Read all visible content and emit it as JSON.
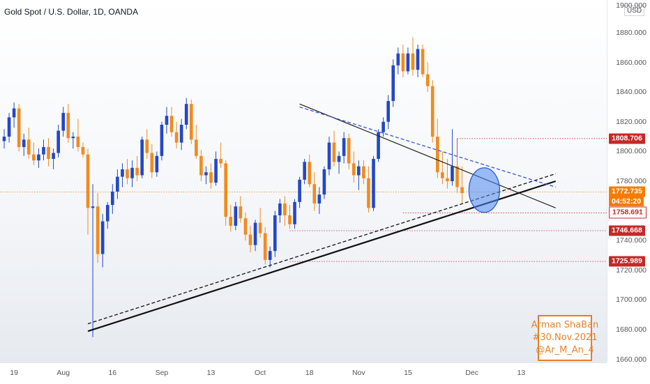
{
  "header": {
    "title": "Gold Spot / U.S. Dollar, 1D, OANDA"
  },
  "axis": {
    "currency": "USD",
    "top_label": "1900.000"
  },
  "signature": {
    "line1": "Arman ShaBan",
    "line2": "#30.Nov.2021",
    "line3": "@Ar_M_An_4"
  },
  "countdown": "04:52:20",
  "colors": {
    "bull": "#2347c8",
    "bear": "#f28a1f",
    "tag_red": "#c62828",
    "tag_orange": "#f57c00",
    "circle": "#4a86f0",
    "signature": "#e67e22"
  },
  "chart_data": {
    "type": "candlestick",
    "title": "Gold Spot / U.S. Dollar, 1D, OANDA",
    "ylim": [
      1658,
      1902
    ],
    "y_ticks": [
      1660,
      1680,
      1700,
      1720,
      1740,
      1760,
      1780,
      1800,
      1820,
      1840,
      1860,
      1880
    ],
    "y_tick_labels": [
      "1660.000",
      "1680.000",
      "1700.000",
      "1720.000",
      "1740.000",
      "1760.000",
      "1780.000",
      "1800.000",
      "1820.000",
      "1840.000",
      "1860.000",
      "1880.000"
    ],
    "x_tick_labels": [
      "19",
      "Aug",
      "16",
      "Sep",
      "13",
      "Oct",
      "18",
      "Nov",
      "15",
      "Dec",
      "13"
    ],
    "x_tick_index": [
      2,
      12,
      22,
      32,
      42,
      52,
      62,
      72,
      82,
      95,
      105
    ],
    "grid": false,
    "price_tags": [
      {
        "value": 1808.706,
        "label": "1808.706",
        "style": "red"
      },
      {
        "value": 1772.735,
        "label": "1772.735",
        "style": "current"
      },
      {
        "value": 1758.691,
        "label": "1758.691",
        "style": "white"
      },
      {
        "value": 1746.668,
        "label": "1746.668",
        "style": "red"
      },
      {
        "value": 1725.989,
        "label": "1725.989",
        "style": "red"
      }
    ],
    "candles": [
      [
        1807,
        1815,
        1802,
        1810
      ],
      [
        1810,
        1826,
        1806,
        1823
      ],
      [
        1823,
        1833,
        1816,
        1829
      ],
      [
        1829,
        1832,
        1800,
        1803
      ],
      [
        1803,
        1812,
        1797,
        1808
      ],
      [
        1808,
        1816,
        1795,
        1798
      ],
      [
        1798,
        1806,
        1791,
        1794
      ],
      [
        1794,
        1802,
        1789,
        1798
      ],
      [
        1798,
        1808,
        1794,
        1803
      ],
      [
        1803,
        1809,
        1790,
        1795
      ],
      [
        1795,
        1802,
        1788,
        1799
      ],
      [
        1799,
        1818,
        1796,
        1814
      ],
      [
        1814,
        1830,
        1810,
        1826
      ],
      [
        1826,
        1832,
        1806,
        1809
      ],
      [
        1809,
        1813,
        1802,
        1810
      ],
      [
        1810,
        1822,
        1800,
        1803
      ],
      [
        1803,
        1806,
        1796,
        1798
      ],
      [
        1798,
        1802,
        1744,
        1762
      ],
      [
        1762,
        1778,
        1675,
        1763
      ],
      [
        1763,
        1772,
        1725,
        1731
      ],
      [
        1731,
        1758,
        1722,
        1753
      ],
      [
        1753,
        1766,
        1748,
        1764
      ],
      [
        1764,
        1778,
        1758,
        1773
      ],
      [
        1773,
        1788,
        1768,
        1783
      ],
      [
        1783,
        1792,
        1776,
        1788
      ],
      [
        1788,
        1795,
        1778,
        1782
      ],
      [
        1782,
        1794,
        1776,
        1789
      ],
      [
        1789,
        1797,
        1780,
        1784
      ],
      [
        1784,
        1810,
        1782,
        1808
      ],
      [
        1808,
        1815,
        1795,
        1799
      ],
      [
        1799,
        1805,
        1782,
        1786
      ],
      [
        1786,
        1800,
        1783,
        1797
      ],
      [
        1797,
        1820,
        1794,
        1818
      ],
      [
        1818,
        1830,
        1812,
        1824
      ],
      [
        1824,
        1830,
        1810,
        1813
      ],
      [
        1813,
        1820,
        1802,
        1806
      ],
      [
        1806,
        1822,
        1801,
        1818
      ],
      [
        1818,
        1836,
        1815,
        1832
      ],
      [
        1832,
        1835,
        1805,
        1808
      ],
      [
        1808,
        1818,
        1795,
        1797
      ],
      [
        1797,
        1801,
        1780,
        1784
      ],
      [
        1784,
        1790,
        1778,
        1786
      ],
      [
        1786,
        1792,
        1775,
        1779
      ],
      [
        1779,
        1800,
        1777,
        1795
      ],
      [
        1795,
        1806,
        1789,
        1792
      ],
      [
        1792,
        1794,
        1750,
        1756
      ],
      [
        1756,
        1764,
        1746,
        1750
      ],
      [
        1750,
        1766,
        1747,
        1763
      ],
      [
        1763,
        1770,
        1752,
        1755
      ],
      [
        1755,
        1759,
        1740,
        1744
      ],
      [
        1744,
        1750,
        1732,
        1737
      ],
      [
        1737,
        1754,
        1733,
        1752
      ],
      [
        1752,
        1762,
        1742,
        1745
      ],
      [
        1745,
        1749,
        1724,
        1727
      ],
      [
        1727,
        1736,
        1722,
        1733
      ],
      [
        1733,
        1760,
        1729,
        1757
      ],
      [
        1757,
        1768,
        1752,
        1765
      ],
      [
        1765,
        1770,
        1750,
        1757
      ],
      [
        1757,
        1764,
        1748,
        1751
      ],
      [
        1751,
        1768,
        1748,
        1766
      ],
      [
        1766,
        1783,
        1762,
        1781
      ],
      [
        1781,
        1795,
        1778,
        1793
      ],
      [
        1793,
        1798,
        1776,
        1778
      ],
      [
        1778,
        1786,
        1760,
        1765
      ],
      [
        1765,
        1776,
        1758,
        1771
      ],
      [
        1771,
        1790,
        1768,
        1788
      ],
      [
        1788,
        1810,
        1784,
        1806
      ],
      [
        1806,
        1814,
        1790,
        1793
      ],
      [
        1793,
        1800,
        1785,
        1797
      ],
      [
        1797,
        1813,
        1792,
        1809
      ],
      [
        1809,
        1812,
        1788,
        1792
      ],
      [
        1792,
        1800,
        1779,
        1784
      ],
      [
        1784,
        1794,
        1774,
        1790
      ],
      [
        1790,
        1794,
        1778,
        1782
      ],
      [
        1782,
        1790,
        1759,
        1762
      ],
      [
        1762,
        1797,
        1760,
        1795
      ],
      [
        1795,
        1815,
        1793,
        1813
      ],
      [
        1813,
        1823,
        1810,
        1820
      ],
      [
        1820,
        1838,
        1815,
        1834
      ],
      [
        1834,
        1862,
        1830,
        1858
      ],
      [
        1858,
        1870,
        1852,
        1866
      ],
      [
        1866,
        1872,
        1850,
        1854
      ],
      [
        1854,
        1870,
        1852,
        1866
      ],
      [
        1866,
        1877,
        1851,
        1855
      ],
      [
        1855,
        1872,
        1850,
        1869
      ],
      [
        1869,
        1872,
        1850,
        1852
      ],
      [
        1852,
        1860,
        1840,
        1844
      ],
      [
        1844,
        1848,
        1806,
        1810
      ],
      [
        1810,
        1822,
        1782,
        1786
      ],
      [
        1786,
        1800,
        1778,
        1782
      ],
      [
        1782,
        1795,
        1775,
        1780
      ],
      [
        1780,
        1815,
        1777,
        1790
      ],
      [
        1790,
        1797,
        1772,
        1776
      ],
      [
        1776,
        1790,
        1765,
        1772
      ]
    ],
    "lines": [
      {
        "name": "support",
        "points": [
          [
            17,
            1679
          ],
          [
            112,
            1780
          ]
        ],
        "style": "solid-thick"
      },
      {
        "name": "support-parallel",
        "points": [
          [
            17,
            1684
          ],
          [
            112,
            1785
          ]
        ],
        "style": "dashed"
      },
      {
        "name": "resistance",
        "points": [
          [
            60,
            1832
          ],
          [
            112,
            1762
          ]
        ],
        "style": "solid"
      },
      {
        "name": "resistance-parallel",
        "points": [
          [
            60,
            1830
          ],
          [
            112,
            1776
          ]
        ],
        "style": "dashed-blue"
      }
    ],
    "highlight": {
      "x_index": 97.5,
      "value": 1774
    }
  }
}
